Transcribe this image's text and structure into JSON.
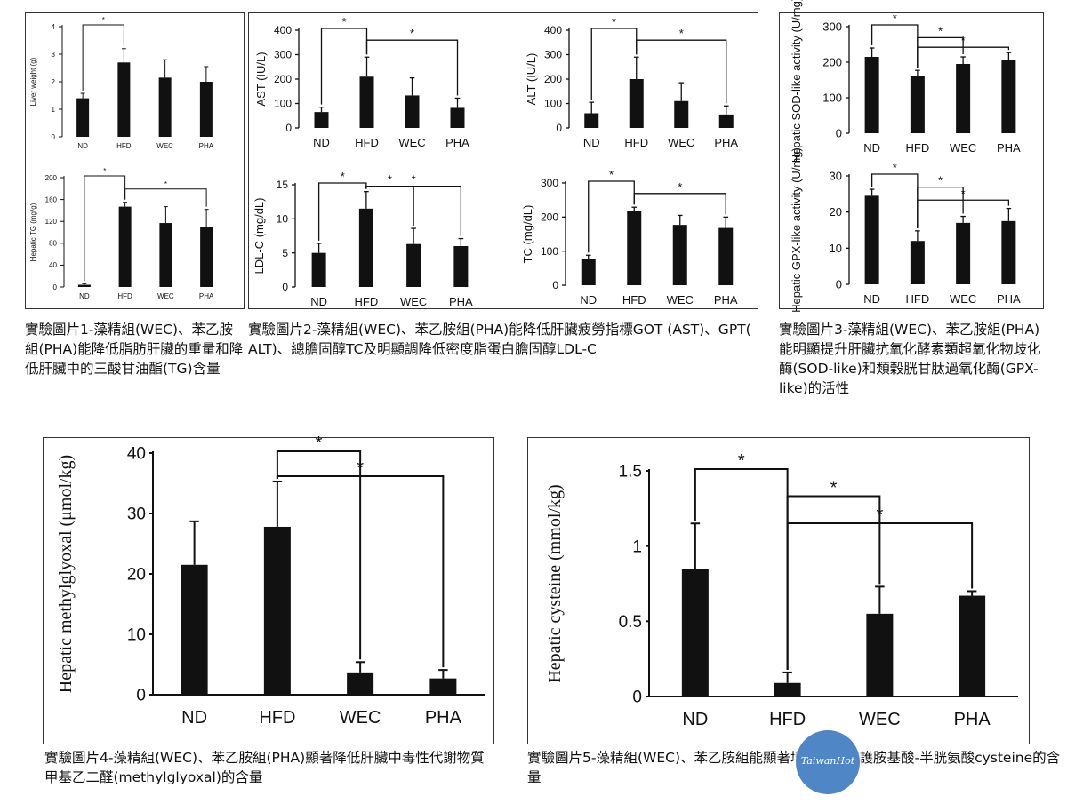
{
  "captions": {
    "fig1": "實驗圖片1-藻精組(WEC)、苯乙胺組(PHA)能降低脂肪肝臟的重量和降低肝臟中的三酸甘油酯(TG)含量",
    "fig2": "實驗圖片2-藻精組(WEC)、苯乙胺組(PHA)能降低肝臟疲勞指標GOT (AST)、GPT( ALT)、總膽固醇TC及明顯調降低密度脂蛋白膽固醇LDL-C",
    "fig3": "實驗圖片3-藻精組(WEC)、苯乙胺組(PHA)能明顯提升肝臟抗氧化酵素類超氧化物歧化酶(SOD-like)和類穀胱甘肽過氧化酶(GPX-like)的活性",
    "fig4": "實驗圖片4-藻精組(WEC)、苯乙胺組(PHA)顯著降低肝臟中毒性代謝物質甲基乙二醛(methylglyoxal)的含量",
    "fig5": "實驗圖片5-藻精組(WEC)、苯乙胺組能顯著增加肝臟保護胺基酸-半胱氨酸cysteine的含量"
  },
  "logo": {
    "text": "TaiwanHot",
    "color": "#4f86c6"
  },
  "chart_data": [
    {
      "type": "bar",
      "ylabel": "Liver weight (g)",
      "categories": [
        "ND",
        "HFD",
        "WEC",
        "PHA"
      ],
      "values": [
        1.4,
        2.7,
        2.15,
        2.0
      ],
      "errors": [
        0.18,
        0.5,
        0.65,
        0.55
      ],
      "ylim": [
        0,
        4
      ],
      "yticks": [
        "0",
        "1",
        "2",
        "3",
        "4"
      ],
      "ytickvals": [
        0,
        1,
        2,
        3,
        4
      ],
      "sig": [
        {
          "from": 0,
          "to": 1,
          "label": "*"
        }
      ]
    },
    {
      "type": "bar",
      "ylabel": "Hepatic TG (mg/g)",
      "categories": [
        "ND",
        "HFD",
        "WEC",
        "PHA"
      ],
      "values": [
        4,
        147,
        117,
        110
      ],
      "errors": [
        2,
        8,
        30,
        32
      ],
      "ylim": [
        0,
        200
      ],
      "yticks": [
        "0",
        "40",
        "80",
        "120",
        "160",
        "200"
      ],
      "ytickvals": [
        0,
        40,
        80,
        120,
        160,
        200
      ],
      "sig": [
        {
          "from": 0,
          "to": 1,
          "label": "*"
        },
        {
          "from": 1,
          "to": 3,
          "label": "*"
        }
      ]
    },
    {
      "type": "bar",
      "ylabel": "AST (IU/L)",
      "categories": [
        "ND",
        "HFD",
        "WEC",
        "PHA"
      ],
      "values": [
        65,
        210,
        133,
        82
      ],
      "errors": [
        20,
        80,
        72,
        40
      ],
      "ylim": [
        0,
        400
      ],
      "yticks": [
        "0",
        "100",
        "200",
        "300",
        "400"
      ],
      "ytickvals": [
        0,
        100,
        200,
        300,
        400
      ],
      "sig": [
        {
          "from": 0,
          "to": 1,
          "label": "*"
        },
        {
          "from": 1,
          "to": 3,
          "label": "*"
        }
      ]
    },
    {
      "type": "bar",
      "ylabel": "ALT (IU/L)",
      "categories": [
        "ND",
        "HFD",
        "WEC",
        "PHA"
      ],
      "values": [
        60,
        200,
        110,
        55
      ],
      "errors": [
        45,
        90,
        75,
        35
      ],
      "ylim": [
        0,
        400
      ],
      "yticks": [
        "0",
        "100",
        "200",
        "300",
        "400"
      ],
      "ytickvals": [
        0,
        100,
        200,
        300,
        400
      ],
      "sig": [
        {
          "from": 0,
          "to": 1,
          "label": "*"
        },
        {
          "from": 1,
          "to": 3,
          "label": "*"
        }
      ]
    },
    {
      "type": "bar",
      "ylabel": "LDL-C (mg/dL)",
      "categories": [
        "ND",
        "HFD",
        "WEC",
        "PHA"
      ],
      "values": [
        5.0,
        11.5,
        6.3,
        6.0
      ],
      "errors": [
        1.4,
        2.5,
        2.3,
        1.1
      ],
      "ylim": [
        0,
        15
      ],
      "yticks": [
        "0",
        "5",
        "10",
        "15"
      ],
      "ytickvals": [
        0,
        5,
        10,
        15
      ],
      "sig": [
        {
          "from": 0,
          "to": 1,
          "label": "*"
        },
        {
          "from": 1,
          "to": 2,
          "label": "*"
        },
        {
          "from": 1,
          "to": 3,
          "label": "*"
        }
      ]
    },
    {
      "type": "bar",
      "ylabel": "TC (mg/dL)",
      "categories": [
        "ND",
        "HFD",
        "WEC",
        "PHA"
      ],
      "values": [
        78,
        217,
        177,
        168
      ],
      "errors": [
        10,
        12,
        28,
        32
      ],
      "ylim": [
        0,
        300
      ],
      "yticks": [
        "0",
        "100",
        "200",
        "300"
      ],
      "ytickvals": [
        0,
        100,
        200,
        300
      ],
      "sig": [
        {
          "from": 0,
          "to": 1,
          "label": "*"
        },
        {
          "from": 1,
          "to": 3,
          "label": "*"
        }
      ]
    },
    {
      "type": "bar",
      "ylabel": "Hepatic SOD-like activity (U/mg)",
      "categories": [
        "ND",
        "HFD",
        "WEC",
        "PHA"
      ],
      "values": [
        215,
        162,
        195,
        205
      ],
      "errors": [
        25,
        15,
        20,
        22
      ],
      "ylim": [
        0,
        300
      ],
      "yticks": [
        "0",
        "100",
        "200",
        "300"
      ],
      "ytickvals": [
        0,
        100,
        200,
        300
      ],
      "sig": [
        {
          "from": 0,
          "to": 1,
          "label": "*"
        },
        {
          "from": 1,
          "to": 2,
          "label": "*"
        },
        {
          "from": 1,
          "to": 3,
          "label": "*"
        }
      ]
    },
    {
      "type": "bar",
      "ylabel": "Hepatic GPX-like activity (U/mg)",
      "categories": [
        "ND",
        "HFD",
        "WEC",
        "PHA"
      ],
      "values": [
        24.5,
        12,
        17,
        17.5
      ],
      "errors": [
        1.8,
        2.8,
        1.8,
        3.5
      ],
      "ylim": [
        0,
        30
      ],
      "yticks": [
        "0",
        "10",
        "20",
        "30"
      ],
      "ytickvals": [
        0,
        10,
        20,
        30
      ],
      "sig": [
        {
          "from": 0,
          "to": 1,
          "label": "*"
        },
        {
          "from": 1,
          "to": 2,
          "label": "*"
        },
        {
          "from": 1,
          "to": 3,
          "label": "*"
        }
      ]
    },
    {
      "type": "bar",
      "ylabel": "Hepatic methylglyoxal (μmol/kg)",
      "categories": [
        "ND",
        "HFD",
        "WEC",
        "PHA"
      ],
      "values": [
        21.5,
        27.8,
        3.7,
        2.7
      ],
      "errors": [
        7.2,
        7.5,
        1.7,
        1.4
      ],
      "ylim": [
        0,
        40
      ],
      "yticks": [
        "0",
        "10",
        "20",
        "30",
        "40"
      ],
      "ytickvals": [
        0,
        10,
        20,
        30,
        40
      ],
      "sig": [
        {
          "from": 1,
          "to": 2,
          "label": "*"
        },
        {
          "from": 1,
          "to": 3,
          "label": "*"
        }
      ]
    },
    {
      "type": "bar",
      "ylabel": "Hepatic cysteine (mmol/kg)",
      "categories": [
        "ND",
        "HFD",
        "WEC",
        "PHA"
      ],
      "values": [
        0.85,
        0.09,
        0.55,
        0.67
      ],
      "errors": [
        0.3,
        0.07,
        0.18,
        0.03
      ],
      "ylim": [
        0,
        1.5
      ],
      "yticks": [
        "0",
        "0.5",
        "1",
        "1.5"
      ],
      "ytickvals": [
        0,
        0.5,
        1,
        1.5
      ],
      "sig": [
        {
          "from": 0,
          "to": 1,
          "label": "*"
        },
        {
          "from": 1,
          "to": 2,
          "label": "*"
        },
        {
          "from": 1,
          "to": 3,
          "label": "*"
        }
      ]
    }
  ]
}
